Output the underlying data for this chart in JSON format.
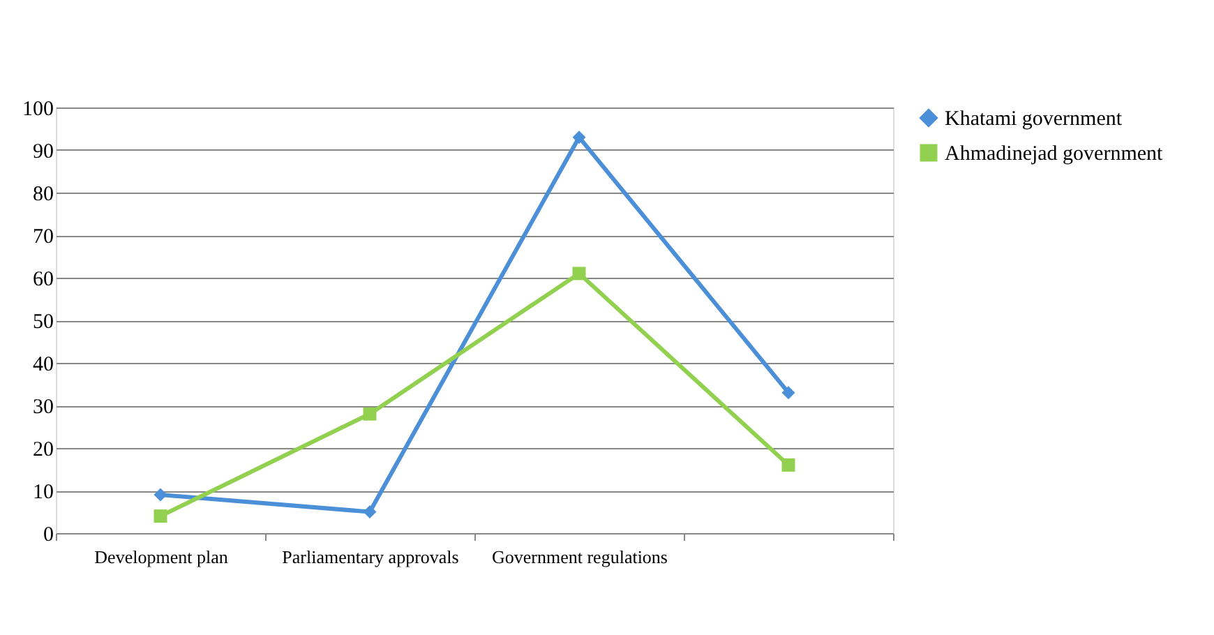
{
  "chart_data": {
    "type": "line",
    "categories": [
      "Development plan",
      "Parliamentary approvals",
      "Government  regulations",
      null
    ],
    "series": [
      {
        "name": "Khatami government",
        "color": "#4a8fd8",
        "marker": "diamond",
        "values": [
          9,
          5,
          93,
          33
        ]
      },
      {
        "name": "Ahmadinejad government",
        "color": "#92d050",
        "marker": "square",
        "values": [
          4,
          28,
          61,
          16
        ]
      }
    ],
    "ylim": [
      0,
      100
    ],
    "yticks": [
      0,
      10,
      20,
      30,
      40,
      50,
      60,
      70,
      80,
      90,
      100
    ],
    "grid": "y",
    "legend": "right"
  }
}
